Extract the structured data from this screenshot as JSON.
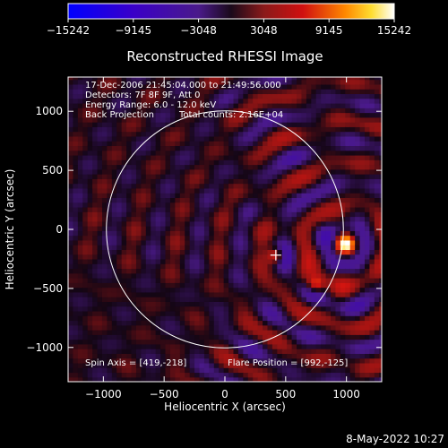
{
  "chart_data": {
    "type": "heatmap",
    "title": "Reconstructed RHESSI Image",
    "xlabel": "Heliocentric X (arcsec)",
    "ylabel": "Heliocentric Y (arcsec)",
    "xlim": [
      -1290,
      1290
    ],
    "ylim": [
      -1290,
      1290
    ],
    "xticks": [
      -1000,
      -500,
      0,
      500,
      1000
    ],
    "yticks": [
      -1000,
      -500,
      0,
      500,
      1000
    ],
    "xtick_labels": [
      "−1000",
      "−500",
      "0",
      "500",
      "1000"
    ],
    "ytick_labels": [
      "−1000",
      "−500",
      "0",
      "500",
      "1000"
    ],
    "colorbar": {
      "min": -15242,
      "max": 15242,
      "ticks": [
        -15242,
        -9145,
        -3048,
        3048,
        9145,
        15242
      ],
      "tick_labels": [
        "−15242",
        "−9145",
        "−3048",
        "3048",
        "9145",
        "15242"
      ]
    },
    "annotations": {
      "line1": "17-Dec-2006 21:45:04.000 to 21:49:56.000",
      "line2": "Detectors: 7F 8F 9F, Att 0",
      "line3": "Energy Range: 6.0 - 12.0 keV",
      "line4a": "Back Projection",
      "line4b": "Total counts: 2.16E+04",
      "spin_axis": "Spin Axis = [419,-218]",
      "flare_position": "Flare Position = [992,-125]"
    },
    "solar_limb": {
      "center": [
        0,
        0
      ],
      "radius": 975
    },
    "marker": {
      "x": 419,
      "y": -218
    },
    "sources": [
      {
        "x": 992,
        "y": -125,
        "peak": 15242
      },
      {
        "x": 419,
        "y": -218,
        "peak": 5000
      },
      {
        "x": 750,
        "y": -460,
        "peak": 5500
      }
    ]
  },
  "footer": {
    "timestamp": "8-May-2022 10:27"
  },
  "colors": {
    "limb": "#ffffff",
    "background": "#000000"
  }
}
